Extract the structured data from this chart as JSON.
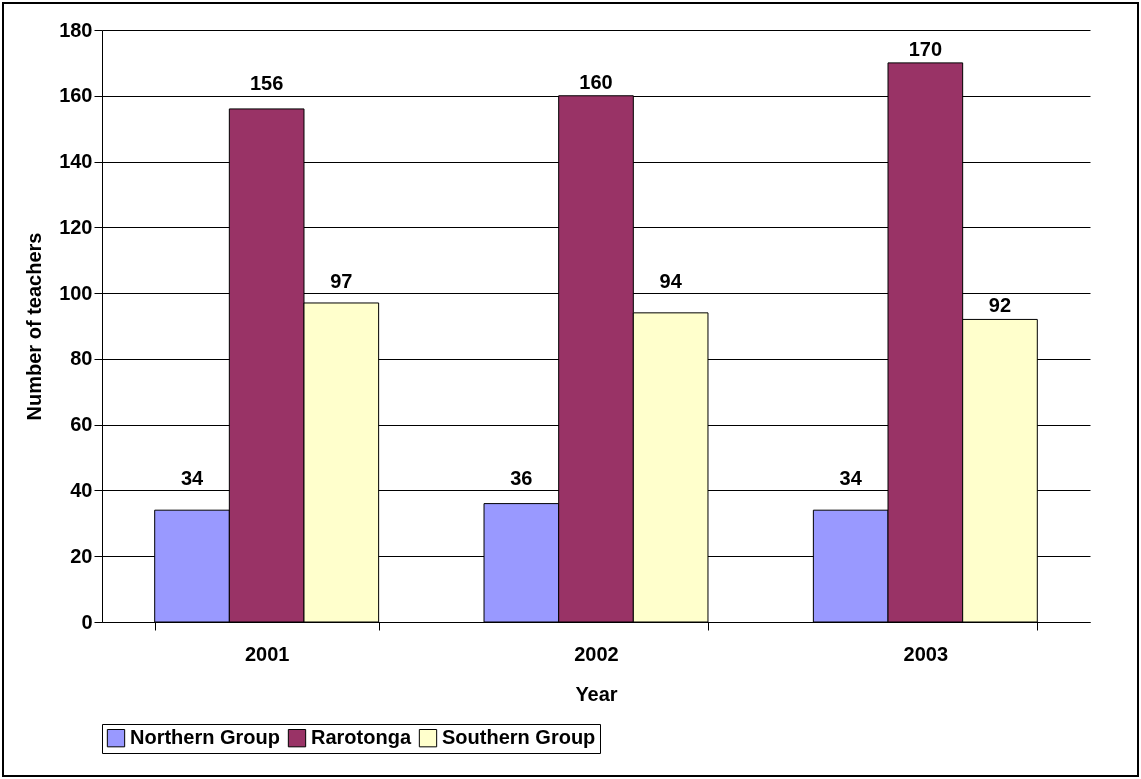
{
  "chart_data": {
    "type": "bar",
    "xlabel": "Year",
    "ylabel": "Number of teachers",
    "categories": [
      "2001",
      "2002",
      "2003"
    ],
    "series": [
      {
        "name": "Northern Group",
        "color": "#9999ff",
        "values": [
          34,
          36,
          34
        ]
      },
      {
        "name": "Rarotonga",
        "color": "#993366",
        "values": [
          156,
          160,
          170
        ]
      },
      {
        "name": "Southern Group",
        "color": "#ffffcc",
        "values": [
          97,
          94,
          92
        ]
      }
    ],
    "ylim": [
      0,
      180
    ],
    "yticks": [
      0,
      20,
      40,
      60,
      80,
      100,
      120,
      140,
      160,
      180
    ],
    "grid": "y",
    "legend": "bottom",
    "data_labels": true
  }
}
